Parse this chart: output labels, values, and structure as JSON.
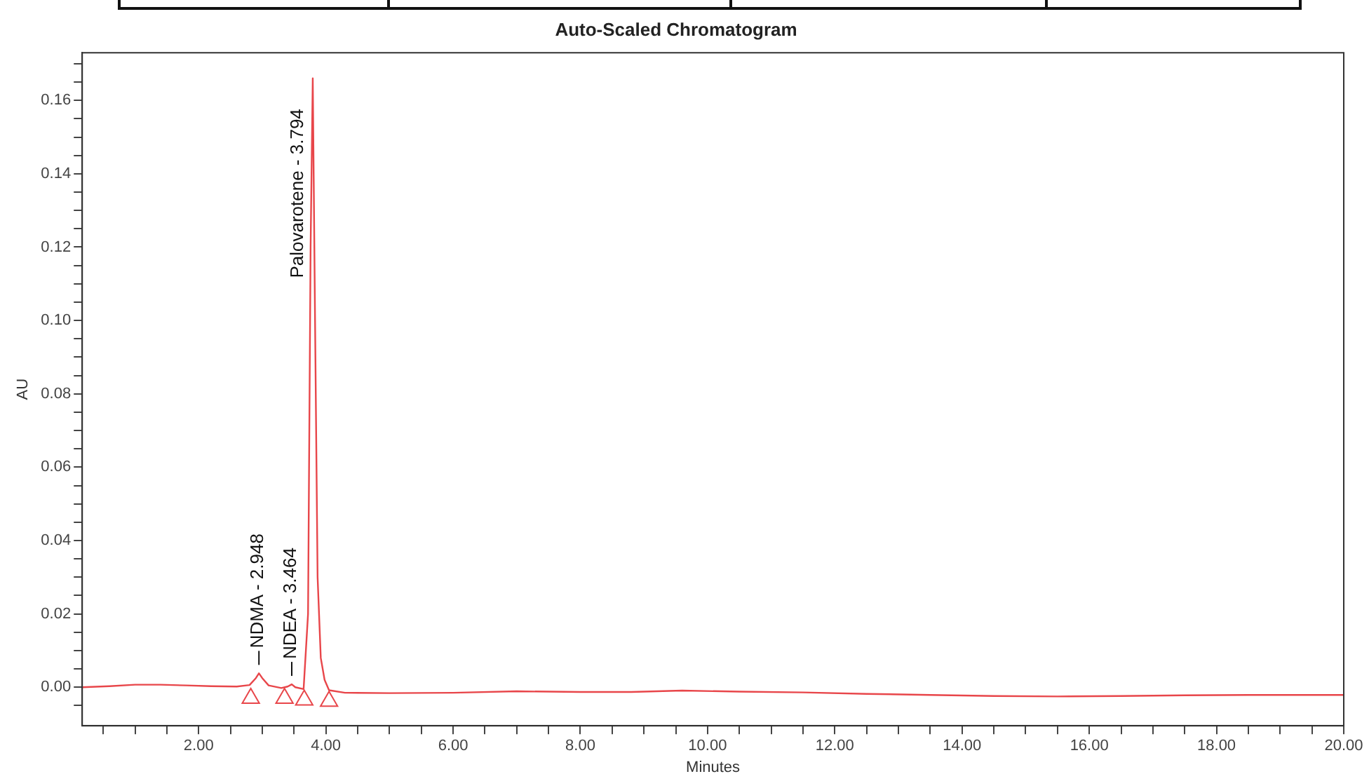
{
  "chart_data": {
    "type": "line",
    "title": "Auto-Scaled Chromatogram",
    "xlabel": "Minutes",
    "ylabel": "AU",
    "xlim": [
      0.17,
      20
    ],
    "ylim": [
      -0.0105,
      0.173
    ],
    "xticks": [
      {
        "value": 0.5,
        "label": null
      },
      {
        "value": 1,
        "label": null
      },
      {
        "value": 1.5,
        "label": null
      },
      {
        "value": 2,
        "label": "2.00"
      },
      {
        "value": 2.5,
        "label": null
      },
      {
        "value": 3,
        "label": null
      },
      {
        "value": 3.5,
        "label": null
      },
      {
        "value": 4,
        "label": "4.00"
      },
      {
        "value": 4.5,
        "label": null
      },
      {
        "value": 5,
        "label": null
      },
      {
        "value": 5.5,
        "label": null
      },
      {
        "value": 6,
        "label": "6.00"
      },
      {
        "value": 6.5,
        "label": null
      },
      {
        "value": 7,
        "label": null
      },
      {
        "value": 7.5,
        "label": null
      },
      {
        "value": 8,
        "label": "8.00"
      },
      {
        "value": 8.5,
        "label": null
      },
      {
        "value": 9,
        "label": null
      },
      {
        "value": 9.5,
        "label": null
      },
      {
        "value": 10,
        "label": "10.00"
      },
      {
        "value": 10.5,
        "label": null
      },
      {
        "value": 11,
        "label": null
      },
      {
        "value": 11.5,
        "label": null
      },
      {
        "value": 12,
        "label": "12.00"
      },
      {
        "value": 12.5,
        "label": null
      },
      {
        "value": 13,
        "label": null
      },
      {
        "value": 13.5,
        "label": null
      },
      {
        "value": 14,
        "label": "14.00"
      },
      {
        "value": 14.5,
        "label": null
      },
      {
        "value": 15,
        "label": null
      },
      {
        "value": 15.5,
        "label": null
      },
      {
        "value": 16,
        "label": "16.00"
      },
      {
        "value": 16.5,
        "label": null
      },
      {
        "value": 17,
        "label": null
      },
      {
        "value": 17.5,
        "label": null
      },
      {
        "value": 18,
        "label": "18.00"
      },
      {
        "value": 18.5,
        "label": null
      },
      {
        "value": 19,
        "label": null
      },
      {
        "value": 19.5,
        "label": null
      },
      {
        "value": 20,
        "label": "20.00"
      }
    ],
    "yticks": [
      {
        "value": -0.005,
        "label": null
      },
      {
        "value": 0,
        "label": "0.00"
      },
      {
        "value": 0.005,
        "label": null
      },
      {
        "value": 0.01,
        "label": null
      },
      {
        "value": 0.015,
        "label": null
      },
      {
        "value": 0.02,
        "label": "0.02"
      },
      {
        "value": 0.025,
        "label": null
      },
      {
        "value": 0.03,
        "label": null
      },
      {
        "value": 0.035,
        "label": null
      },
      {
        "value": 0.04,
        "label": "0.04"
      },
      {
        "value": 0.045,
        "label": null
      },
      {
        "value": 0.05,
        "label": null
      },
      {
        "value": 0.055,
        "label": null
      },
      {
        "value": 0.06,
        "label": "0.06"
      },
      {
        "value": 0.065,
        "label": null
      },
      {
        "value": 0.07,
        "label": null
      },
      {
        "value": 0.075,
        "label": null
      },
      {
        "value": 0.08,
        "label": "0.08"
      },
      {
        "value": 0.085,
        "label": null
      },
      {
        "value": 0.09,
        "label": null
      },
      {
        "value": 0.095,
        "label": null
      },
      {
        "value": 0.1,
        "label": "0.10"
      },
      {
        "value": 0.105,
        "label": null
      },
      {
        "value": 0.11,
        "label": null
      },
      {
        "value": 0.115,
        "label": null
      },
      {
        "value": 0.12,
        "label": "0.12"
      },
      {
        "value": 0.125,
        "label": null
      },
      {
        "value": 0.13,
        "label": null
      },
      {
        "value": 0.135,
        "label": null
      },
      {
        "value": 0.14,
        "label": "0.14"
      },
      {
        "value": 0.145,
        "label": null
      },
      {
        "value": 0.15,
        "label": null
      },
      {
        "value": 0.155,
        "label": null
      },
      {
        "value": 0.16,
        "label": "0.16"
      },
      {
        "value": 0.165,
        "label": null
      },
      {
        "value": 0.17,
        "label": null
      }
    ],
    "grid": false,
    "legend": false,
    "series": [
      {
        "color": "#e8464a",
        "marker": "none",
        "line_style": "solid",
        "x": [
          0.17,
          0.6,
          1.0,
          1.4,
          1.8,
          2.2,
          2.6,
          2.8,
          2.9,
          2.948,
          3.0,
          3.1,
          3.3,
          3.4,
          3.464,
          3.52,
          3.65,
          3.72,
          3.76,
          3.794,
          3.83,
          3.87,
          3.92,
          3.98,
          4.05,
          4.3,
          5.0,
          6.0,
          7.0,
          8.0,
          8.8,
          9.6,
          10.5,
          11.5,
          12.5,
          13.5,
          14.5,
          15.5,
          16.5,
          17.5,
          18.5,
          19.5,
          20.0
        ],
        "values": [
          0.0,
          0.0003,
          0.0007,
          0.0007,
          0.0005,
          0.0003,
          0.0002,
          0.0006,
          0.0025,
          0.0038,
          0.0025,
          0.0005,
          -0.0002,
          0.0002,
          0.0008,
          0.0,
          -0.0005,
          0.02,
          0.12,
          0.166,
          0.1,
          0.03,
          0.008,
          0.002,
          -0.0008,
          -0.0015,
          -0.0016,
          -0.0015,
          -0.0011,
          -0.0013,
          -0.0013,
          -0.0009,
          -0.0012,
          -0.0014,
          -0.0018,
          -0.0021,
          -0.0024,
          -0.0025,
          -0.0024,
          -0.0022,
          -0.0021,
          -0.0021,
          -0.0021
        ]
      },
      {
        "type": "scatter",
        "color": "#e8464a",
        "marker": "triangle",
        "x": [
          2.82,
          3.35,
          3.66,
          4.05
        ],
        "values": [
          -0.003,
          -0.003,
          -0.0035,
          -0.0038
        ]
      }
    ],
    "annotations": [
      {
        "text": "NDMA - 2.948",
        "x": 2.948,
        "y": 0.0038
      },
      {
        "text": "NDEA - 3.464",
        "x": 3.464,
        "y": 0.0008
      },
      {
        "text": "Palovarotene - 3.794",
        "x": 3.794,
        "y": 0.166
      }
    ]
  }
}
